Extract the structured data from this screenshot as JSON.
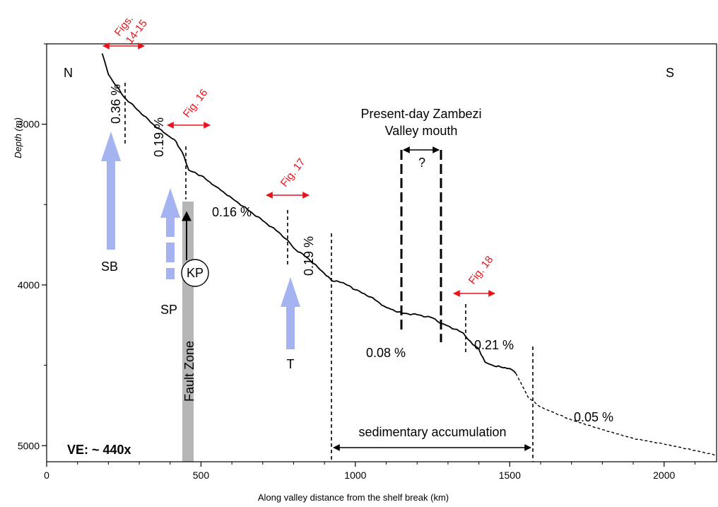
{
  "chart_data": {
    "type": "line",
    "title": "",
    "xlabel": "Along valley distance from the shelf break (km)",
    "ylabel": "Depth (m)",
    "xlim": [
      0,
      2170
    ],
    "ylim": [
      5100,
      2500
    ],
    "y_inverted": true,
    "grid": false,
    "x_ticks": [
      0,
      500,
      1000,
      1500,
      2000
    ],
    "y_ticks": [
      3000,
      4000,
      5000
    ],
    "series": [
      {
        "style": "solid",
        "x": [
          180,
          200,
          250,
          300,
          350,
          400,
          420,
          445,
          460,
          500,
          550,
          600,
          650,
          700,
          750,
          780,
          800,
          850,
          900,
          925,
          960,
          1000,
          1050,
          1100,
          1150,
          1200,
          1250,
          1280,
          1300,
          1350,
          1380,
          1400,
          1420,
          1450,
          1470,
          1500,
          1520
        ],
        "y": [
          2560,
          2690,
          2830,
          2920,
          3010,
          3080,
          3110,
          3200,
          3285,
          3320,
          3390,
          3460,
          3530,
          3600,
          3670,
          3720,
          3770,
          3840,
          3930,
          3975,
          3985,
          4030,
          4075,
          4140,
          4175,
          4185,
          4205,
          4240,
          4255,
          4300,
          4370,
          4400,
          4480,
          4505,
          4510,
          4520,
          4550
        ]
      },
      {
        "style": "dashed",
        "x": [
          1520,
          1560,
          1600,
          1700,
          1800,
          1900,
          2000,
          2100,
          2170
        ],
        "y": [
          4550,
          4700,
          4760,
          4840,
          4900,
          4955,
          4990,
          5030,
          5060
        ]
      }
    ],
    "labels": {
      "north": "N",
      "south": "S",
      "ve": "VE: ~ 440x",
      "fig_14_15_line1": "Figs.",
      "fig_14_15_line2": "14-15",
      "fig_16": "Fig. 16",
      "fig_17": "Fig. 17",
      "fig_18": "Fig. 18",
      "slope_036": "0.36 %",
      "slope_019a": "0.19 %",
      "slope_016": "0.16 %",
      "slope_019b": "0.19 %",
      "slope_008": "0.08 %",
      "slope_021": "0.21 %",
      "slope_005": "0.05 %",
      "mouth_line1": "Present-day Zambezi",
      "mouth_line2": "Valley mouth",
      "question": "?",
      "sb": "SB",
      "sp": "SP",
      "kp": "KP",
      "t": "T",
      "fault_zone": "Fault Zone",
      "sed_acc": "sedimentary accumulation"
    }
  }
}
